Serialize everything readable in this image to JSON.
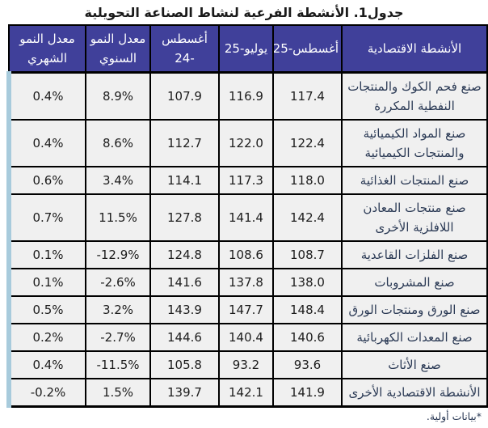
{
  "title": "جدول1. الأنشطة الفرعية لنشاط الصناعة التحويلية",
  "footnote": "*بيانات أولية.",
  "colors": {
    "header_bg": "#40409A",
    "header_text": "#FFFFFF",
    "cell_bg": "#F0F0F0",
    "border": "#000000",
    "left_strip": "#A8CBDC",
    "text": "#1C1C1C",
    "label_text": "#2B3A55"
  },
  "table": {
    "columns": [
      {
        "key": "activity",
        "label": "الأنشطة الاقتصادية"
      },
      {
        "key": "aug25",
        "label": "أغسطس-25"
      },
      {
        "key": "jul25",
        "label": "يوليو-25"
      },
      {
        "key": "aug24",
        "label": "أغسطس -24"
      },
      {
        "key": "annual",
        "label": "معدل النمو السنوي"
      },
      {
        "key": "monthly",
        "label": "معدل النمو الشهري"
      }
    ],
    "rows": [
      {
        "activity": "صنع فحم الكوك والمنتجات النفطية المكررة",
        "aug25": "117.4",
        "jul25": "116.9",
        "aug24": "107.9",
        "annual": "8.9%",
        "monthly": "0.4%"
      },
      {
        "activity": "صنع المواد الكيميائية والمنتجات الكيميائية",
        "aug25": "122.4",
        "jul25": "122.0",
        "aug24": "112.7",
        "annual": "8.6%",
        "monthly": "0.4%"
      },
      {
        "activity": "صنع المنتجات الغذائية",
        "aug25": "118.0",
        "jul25": "117.3",
        "aug24": "114.1",
        "annual": "3.4%",
        "monthly": "0.6%"
      },
      {
        "activity": "صنع منتجات المعادن اللافلزية الأخرى",
        "aug25": "142.4",
        "jul25": "141.4",
        "aug24": "127.8",
        "annual": "11.5%",
        "monthly": "0.7%"
      },
      {
        "activity": "صنع الفلزات القاعدية",
        "aug25": "108.7",
        "jul25": "108.6",
        "aug24": "124.8",
        "annual": "-12.9%",
        "monthly": "0.1%"
      },
      {
        "activity": "صنع المشروبات",
        "aug25": "138.0",
        "jul25": "137.8",
        "aug24": "141.6",
        "annual": "-2.6%",
        "monthly": "0.1%"
      },
      {
        "activity": "صنع الورق ومنتجات الورق",
        "aug25": "148.4",
        "jul25": "147.7",
        "aug24": "143.9",
        "annual": "3.2%",
        "monthly": "0.5%"
      },
      {
        "activity": "صنع المعدات الكهربائية",
        "aug25": "140.6",
        "jul25": "140.4",
        "aug24": "144.6",
        "annual": "-2.7%",
        "monthly": "0.2%"
      },
      {
        "activity": "صنع الأثاث",
        "aug25": "93.6",
        "jul25": "93.2",
        "aug24": "105.8",
        "annual": "-11.5%",
        "monthly": "0.4%"
      },
      {
        "activity": "الأنشطة الاقتصادية الأخرى",
        "aug25": "141.9",
        "jul25": "142.1",
        "aug24": "139.7",
        "annual": "1.5%",
        "monthly": "-0.2%"
      }
    ]
  }
}
